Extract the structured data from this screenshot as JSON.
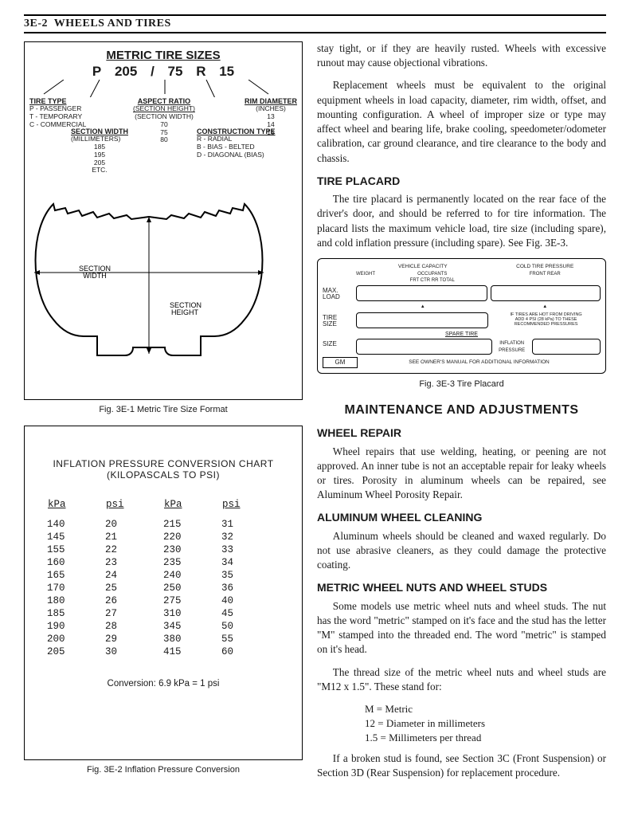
{
  "header": {
    "section_code": "3E-2",
    "section_title": "WHEELS AND TIRES"
  },
  "fig1": {
    "title": "METRIC TIRE SIZES",
    "code_parts": [
      "P",
      "205",
      "/",
      "75",
      "R",
      "15"
    ],
    "tire_type": {
      "head": "TIRE TYPE",
      "lines": [
        "P - PASSENGER",
        "T - TEMPORARY",
        "C - COMMERCIAL"
      ]
    },
    "aspect_ratio": {
      "head": "ASPECT RATIO",
      "lines": [
        "(SECTION HEIGHT)",
        "(SECTION WIDTH)",
        "70",
        "75",
        "80"
      ]
    },
    "rim_diameter": {
      "head": "RIM DIAMETER",
      "lines": [
        "(INCHES)",
        "13",
        "14",
        "15"
      ]
    },
    "section_width": {
      "head": "SECTION WIDTH",
      "lines": [
        "(MILLIMETERS)",
        "185",
        "195",
        "205",
        "ETC."
      ]
    },
    "construction_type": {
      "head": "CONSTRUCTION TYPE",
      "lines": [
        "R - RADIAL",
        "B - BIAS - BELTED",
        "D - DIAGONAL (BIAS)"
      ]
    },
    "section_width_label": "SECTION\nWIDTH",
    "section_height_label": "SECTION\nHEIGHT",
    "caption": "Fig. 3E-1 Metric Tire Size Format"
  },
  "fig2": {
    "title_l1": "INFLATION PRESSURE CONVERSION CHART",
    "title_l2": "(KILOPASCALS TO PSI)",
    "headers": [
      "kPa",
      "psi",
      "kPa",
      "psi"
    ],
    "rows": [
      [
        "140",
        "20",
        "215",
        "31"
      ],
      [
        "145",
        "21",
        "220",
        "32"
      ],
      [
        "155",
        "22",
        "230",
        "33"
      ],
      [
        "160",
        "23",
        "235",
        "34"
      ],
      [
        "165",
        "24",
        "240",
        "35"
      ],
      [
        "170",
        "25",
        "250",
        "36"
      ],
      [
        "180",
        "26",
        "275",
        "40"
      ],
      [
        "185",
        "27",
        "310",
        "45"
      ],
      [
        "190",
        "28",
        "345",
        "50"
      ],
      [
        "200",
        "29",
        "380",
        "55"
      ],
      [
        "205",
        "30",
        "415",
        "60"
      ]
    ],
    "conversion": "Conversion: 6.9 kPa = 1 psi",
    "caption": "Fig. 3E-2 Inflation Pressure Conversion"
  },
  "right": {
    "p1": "stay tight, or if they are heavily rusted. Wheels with excessive runout may cause objectional vibrations.",
    "p2": "Replacement wheels must be equivalent to the original equipment wheels in load capacity, diameter, rim width, offset, and mounting configuration. A wheel of improper size or type may affect wheel and bearing life, brake cooling, speedometer/odometer calibration, car ground clearance, and tire clearance to the body and chassis.",
    "h_placard": "TIRE PLACARD",
    "p3": "The tire placard is permanently located on the rear face of the driver's door, and should be referred to for tire information. The placard lists the maximum vehicle load, tire size (including spare), and cold inflation pressure (including spare). See Fig. 3E-3.",
    "fig3": {
      "vehicle_capacity": "VEHICLE CAPACITY",
      "weight": "WEIGHT",
      "occupants": "OCCUPANTS",
      "occ_cols": "FRT  CTR  RR  TOTAL",
      "cold_pressure": "COLD TIRE PRESSURE",
      "front_rear": "FRONT          REAR",
      "max_load": "MAX.\nLOAD",
      "tire_size": "TIRE\nSIZE",
      "hot_note": "IF TIRES ARE HOT FROM DRIVING\nADD 4 PSI (28 kPa) TO THESE\nRECOMMENDED PRESSURES",
      "spare_tire": "SPARE TIRE",
      "size": "SIZE",
      "inflation_pressure": "INFLATION\nPRESSURE",
      "gm": "GM",
      "footer": "SEE OWNER'S MANUAL FOR ADDITIONAL INFORMATION",
      "caption": "Fig. 3E-3 Tire Placard"
    },
    "h_main": "MAINTENANCE AND ADJUSTMENTS",
    "h_repair": "WHEEL REPAIR",
    "p4": "Wheel repairs that use welding, heating, or peening are not approved. An inner tube is not an acceptable repair for leaky wheels or tires. Porosity in aluminum wheels can be repaired, see Aluminum Wheel Porosity Repair.",
    "h_alum": "ALUMINUM WHEEL CLEANING",
    "p5": "Aluminum wheels should be cleaned and waxed regularly. Do not use abrasive cleaners, as they could damage the protective coating.",
    "h_metric": "METRIC WHEEL NUTS AND WHEEL STUDS",
    "p6": "Some models use metric wheel nuts and wheel studs. The nut has the word \"metric\" stamped on it's face and the stud has the letter \"M\" stamped into the threaded end. The word \"metric\" is stamped on it's head.",
    "p7": "The thread size of the metric wheel nuts and wheel studs are \"M12 x 1.5\". These stand for:",
    "defs": {
      "d1": "M = Metric",
      "d2": "12 = Diameter in millimeters",
      "d3": "1.5 = Millimeters per thread"
    },
    "p8": "If a broken stud is found, see Section 3C (Front Suspension) or Section 3D (Rear Suspension) for replacement procedure."
  }
}
